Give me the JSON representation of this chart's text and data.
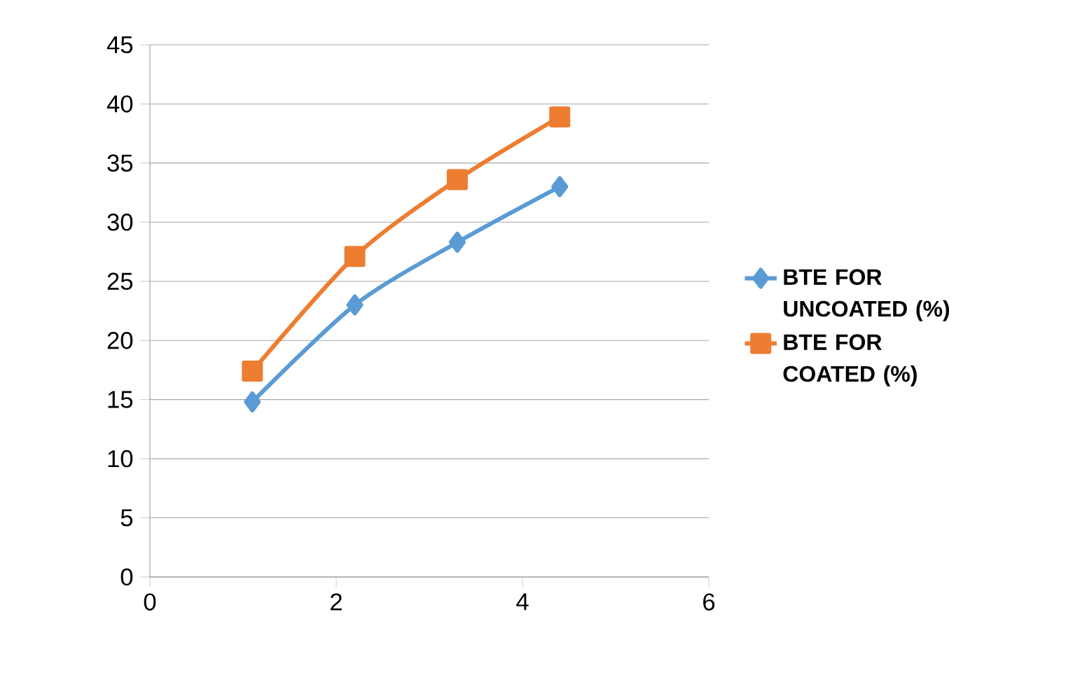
{
  "chart_data": {
    "type": "line",
    "x": [
      1.1,
      2.2,
      3.3,
      4.4
    ],
    "series": [
      {
        "name": "BTE FOR UNCOATED (%)",
        "color": "#5b9bd5",
        "marker": "diamond",
        "values": [
          14.8,
          23.0,
          28.3,
          33.0
        ]
      },
      {
        "name": "BTE FOR COATED (%)",
        "color": "#ed7d31",
        "marker": "square",
        "values": [
          17.4,
          27.1,
          33.6,
          38.9
        ]
      }
    ],
    "xlim": [
      0,
      6
    ],
    "xticks": [
      0,
      2,
      4,
      6
    ],
    "ylim": [
      0,
      45
    ],
    "yticks": [
      0,
      5,
      10,
      15,
      20,
      25,
      30,
      35,
      40,
      45
    ],
    "grid": "y",
    "legend": "right",
    "line_style": "solid"
  }
}
